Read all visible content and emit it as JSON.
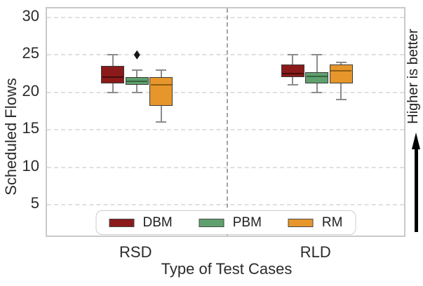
{
  "chart_data": {
    "type": "boxplot",
    "title": "",
    "xlabel": "Type of Test Cases",
    "ylabel": "Scheduled Flows",
    "annotation": {
      "text": "Higher is better",
      "side": "right",
      "arrow_direction": "up"
    },
    "categories": [
      "RSD",
      "RLD"
    ],
    "yticks": [
      5,
      10,
      15,
      20,
      25,
      30
    ],
    "ylim": [
      0.5,
      31.2
    ],
    "grid": {
      "horizontal": true,
      "style": "dashed"
    },
    "category_separator": {
      "style": "dashed",
      "color": "#a3a3a3"
    },
    "legend": {
      "position": "lower-center",
      "entries": [
        "DBM",
        "PBM",
        "RM"
      ]
    },
    "series": [
      {
        "name": "DBM",
        "color": "#8B1A1A",
        "median_color": "#420C0C",
        "boxes": [
          {
            "category": "RSD",
            "whislo": 20.0,
            "q1": 21.2,
            "med": 22.0,
            "q3": 23.5,
            "whishi": 25.0,
            "outliers": []
          },
          {
            "category": "RLD",
            "whislo": 21.0,
            "q1": 22.0,
            "med": 22.5,
            "q3": 23.7,
            "whishi": 25.0,
            "outliers": []
          }
        ]
      },
      {
        "name": "PBM",
        "color": "#5FA06E",
        "median_color": "#33663E",
        "boxes": [
          {
            "category": "RSD",
            "whislo": 20.0,
            "q1": 21.0,
            "med": 21.5,
            "q3": 22.0,
            "whishi": 23.0,
            "outliers": [
              25.0
            ]
          },
          {
            "category": "RLD",
            "whislo": 20.0,
            "q1": 21.2,
            "med": 22.1,
            "q3": 22.7,
            "whishi": 25.0,
            "outliers": []
          }
        ]
      },
      {
        "name": "RM",
        "color": "#E6962B",
        "median_color": "#8F5E13",
        "boxes": [
          {
            "category": "RSD",
            "whislo": 16.0,
            "q1": 18.2,
            "med": 21.0,
            "q3": 22.0,
            "whishi": 23.0,
            "outliers": []
          },
          {
            "category": "RLD",
            "whislo": 19.0,
            "q1": 21.2,
            "med": 22.9,
            "q3": 23.7,
            "whishi": 24.0,
            "outliers": []
          }
        ]
      }
    ]
  }
}
